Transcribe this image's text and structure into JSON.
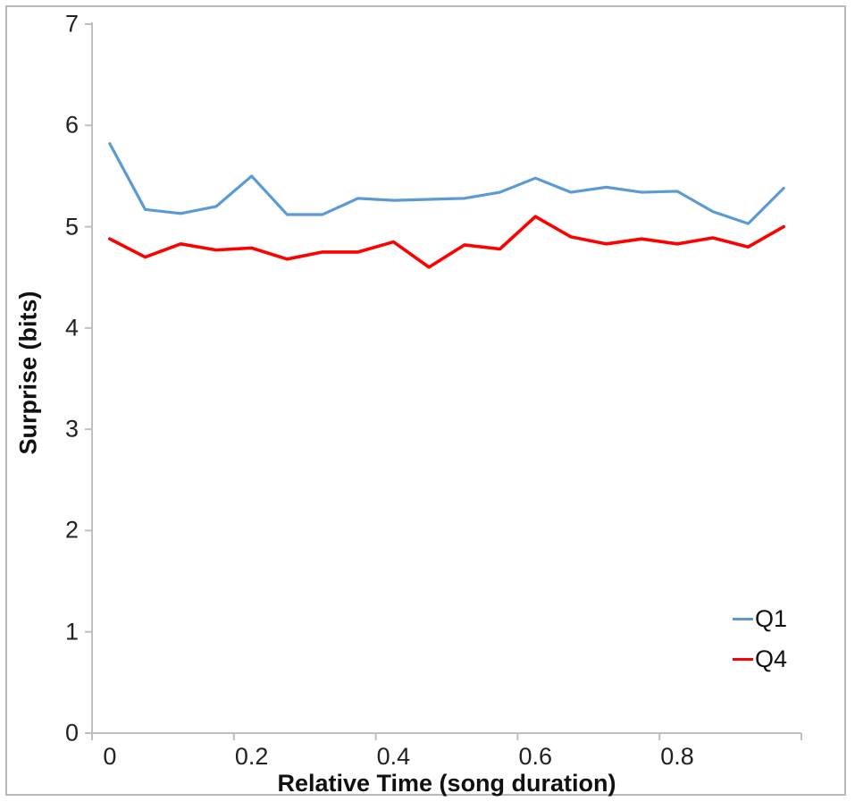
{
  "chart_data": {
    "type": "line",
    "title": "",
    "xlabel": "Relative Time (song duration)",
    "ylabel": "Surprise (bits)",
    "x": [
      0,
      0.05,
      0.1,
      0.15,
      0.2,
      0.25,
      0.3,
      0.35,
      0.4,
      0.45,
      0.5,
      0.55,
      0.6,
      0.65,
      0.7,
      0.75,
      0.8,
      0.85,
      0.9,
      0.95
    ],
    "series": [
      {
        "name": "Q1",
        "color": "#5B9BD5",
        "line_width": 3.2,
        "values": [
          5.82,
          5.17,
          5.13,
          5.2,
          5.5,
          5.12,
          5.12,
          5.28,
          5.26,
          5.27,
          5.28,
          5.34,
          5.48,
          5.34,
          5.39,
          5.34,
          5.35,
          5.15,
          5.03,
          5.38
        ]
      },
      {
        "name": "Q4",
        "color": "#FF0000",
        "line_width": 3.6,
        "values": [
          4.88,
          4.7,
          4.83,
          4.77,
          4.79,
          4.68,
          4.75,
          4.75,
          4.85,
          4.6,
          4.82,
          4.78,
          5.1,
          4.9,
          4.83,
          4.88,
          4.83,
          4.89,
          4.8,
          5.0
        ]
      }
    ],
    "ylim": [
      0,
      7
    ],
    "yticks": [
      "0",
      "1",
      "2",
      "3",
      "4",
      "5",
      "6",
      "7"
    ],
    "xtick_labels": [
      "0",
      "0.2",
      "0.4",
      "0.6",
      "0.8"
    ],
    "xtick_index": [
      0,
      4,
      8,
      12,
      16
    ],
    "grid": false,
    "legend_position": "lower right",
    "axis_color": "#BFBFBF",
    "text_color": "#111111"
  }
}
